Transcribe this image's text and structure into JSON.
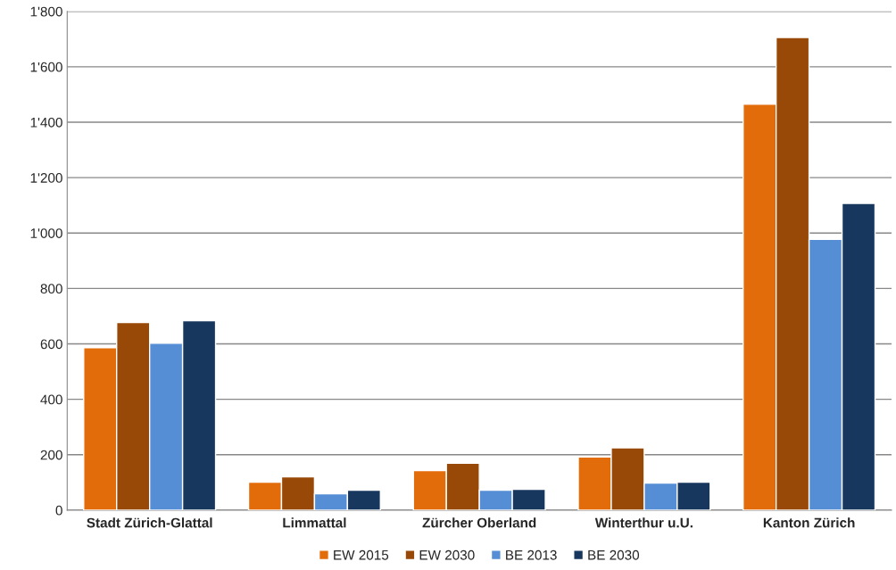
{
  "chart_data": {
    "type": "bar",
    "categories": [
      "Stadt Zürich-Glattal",
      "Limmattal",
      "Zürcher Oberland",
      "Winterthur u.U.",
      "Kanton Zürich"
    ],
    "series": [
      {
        "name": "EW 2015",
        "color": "#e36c0a",
        "values": [
          586,
          101,
          143,
          192,
          1465
        ]
      },
      {
        "name": "EW 2030",
        "color": "#984807",
        "values": [
          677,
          120,
          169,
          225,
          1706
        ]
      },
      {
        "name": "BE 2013",
        "color": "#558ed5",
        "values": [
          602,
          59,
          72,
          98,
          977
        ]
      },
      {
        "name": "BE 2030",
        "color": "#17375e",
        "values": [
          684,
          72,
          75,
          101,
          1107
        ]
      }
    ],
    "ylim": [
      0,
      1800
    ],
    "yticks": [
      0,
      200,
      400,
      600,
      800,
      {
        "value": 1000,
        "label": "1'000"
      },
      {
        "value": 1200,
        "label": "1'200"
      },
      {
        "value": 1400,
        "label": "1'400"
      },
      {
        "value": 1600,
        "label": "1'600"
      },
      {
        "value": 1800,
        "label": "1'800"
      }
    ],
    "grid": "y",
    "legend": "bottom"
  }
}
